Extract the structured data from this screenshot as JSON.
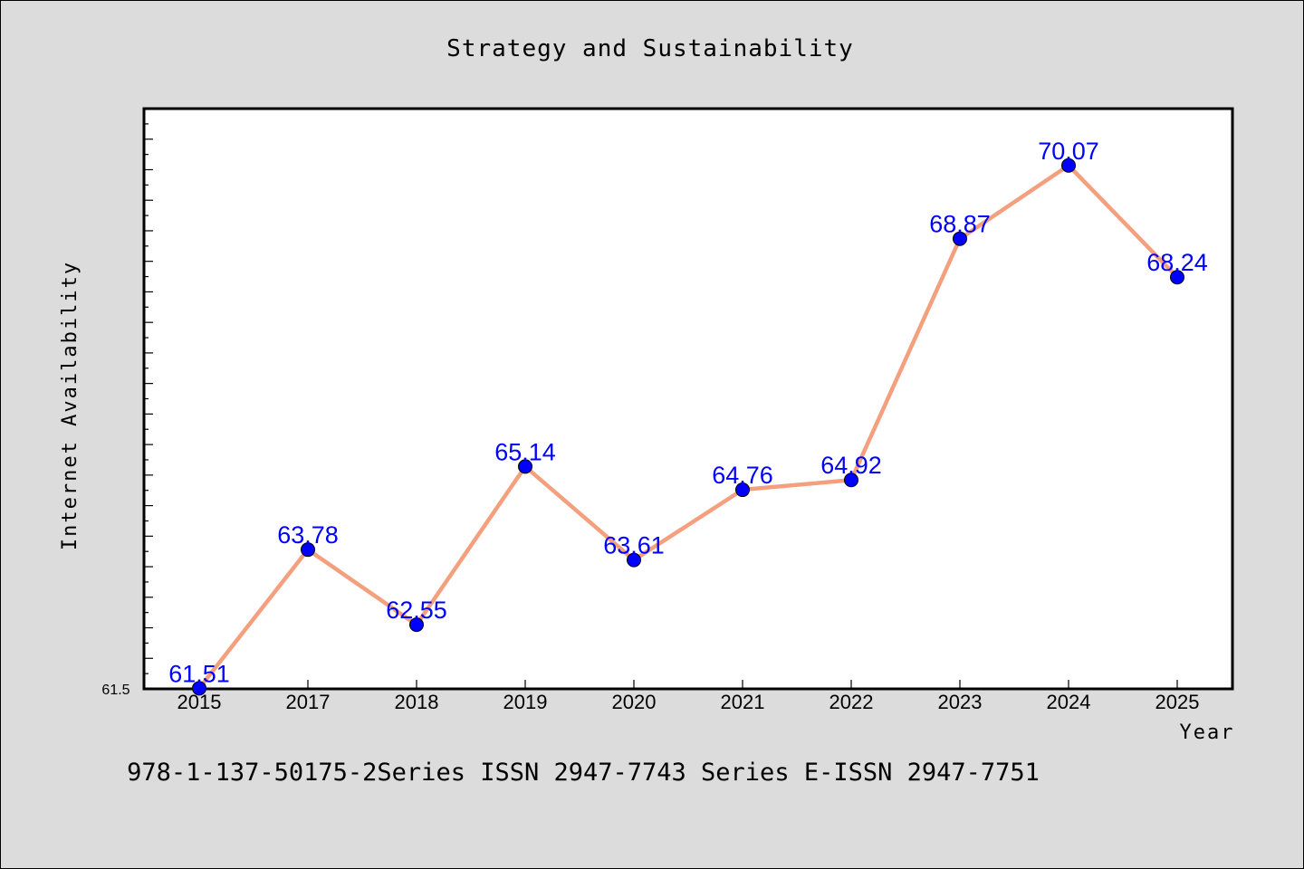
{
  "chart_data": {
    "type": "line",
    "title": "Strategy and Sustainability",
    "xlabel": "Year",
    "ylabel": "Internet Availability",
    "categories": [
      "2015",
      "2017",
      "2018",
      "2019",
      "2020",
      "2021",
      "2022",
      "2023",
      "2024",
      "2025"
    ],
    "series": [
      {
        "values": [
          61.51,
          63.78,
          62.55,
          65.14,
          63.61,
          64.76,
          64.92,
          68.87,
          70.07,
          68.24
        ],
        "labels": [
          "61.51",
          "63.78",
          "62.55",
          "65.14",
          "63.61",
          "64.76",
          "64.92",
          "68.87",
          "70.07",
          "68.24"
        ],
        "line_color": "#f4a07e",
        "marker_color": "#0000ff"
      }
    ],
    "ylim": [
      61.5,
      71.0
    ],
    "y_tick_labels": [
      "61.5"
    ],
    "grid": false,
    "legend": "none",
    "background": "#ffffff",
    "figure_background": "#dcdcdc"
  },
  "footer": {
    "text": "978-1-137-50175-2Series ISSN 2947-7743 Series E-ISSN 2947-7751"
  }
}
